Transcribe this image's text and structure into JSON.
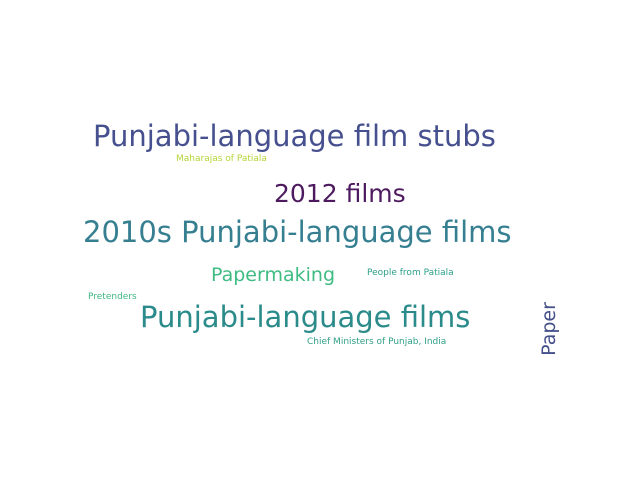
{
  "words": [
    {
      "text": "Punjabi-language film stubs",
      "color": "#46508f"
    },
    {
      "text": "Maharajas of Patiala",
      "color": "#b5d53a"
    },
    {
      "text": "2012 films",
      "color": "#4d1a5f"
    },
    {
      "text": "2010s Punjabi-language films",
      "color": "#357f91"
    },
    {
      "text": "Papermaking",
      "color": "#3fbc82"
    },
    {
      "text": "People from Patiala",
      "color": "#2c9f89"
    },
    {
      "text": "Pretenders",
      "color": "#3fb784"
    },
    {
      "text": "Punjabi-language films",
      "color": "#2b8b8a"
    },
    {
      "text": "Chief Ministers of Punjab, India",
      "color": "#31a088"
    },
    {
      "text": "Paper",
      "color": "#434f8a",
      "orientation": "vertical"
    }
  ]
}
